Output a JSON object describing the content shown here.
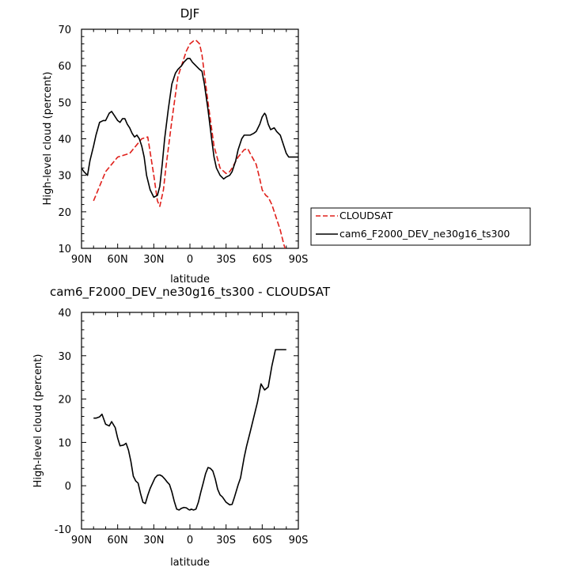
{
  "chart_data": [
    {
      "type": "line",
      "title": "DJF",
      "xlabel": "latitude",
      "ylabel": "High-level cloud (percent)",
      "xlim": [
        90,
        -90
      ],
      "ylim": [
        10,
        70
      ],
      "x_major_ticks": [
        90,
        60,
        30,
        0,
        -30,
        -60,
        -90
      ],
      "x_tick_labels": [
        "90N",
        "60N",
        "30N",
        "0",
        "30S",
        "60S",
        "90S"
      ],
      "y_major_ticks": [
        10,
        20,
        30,
        40,
        50,
        60,
        70
      ],
      "y_tick_labels": [
        "10",
        "20",
        "30",
        "40",
        "50",
        "60",
        "70"
      ],
      "legend_position": "right",
      "series": [
        {
          "name": "CLOUDSAT",
          "color": "#e0201b",
          "dash": "dashed",
          "x": [
            80,
            75,
            70,
            65,
            60,
            55,
            50,
            45,
            40,
            35,
            30,
            27,
            25,
            22,
            20,
            15,
            10,
            5,
            3,
            0,
            -3,
            -5,
            -8,
            -10,
            -15,
            -20,
            -25,
            -30,
            -33,
            -35,
            -40,
            -45,
            -48,
            -50,
            -55,
            -58,
            -60,
            -63,
            -65,
            -68,
            -70,
            -75,
            -78,
            -80
          ],
          "y": [
            23,
            27,
            31,
            33,
            35,
            35.5,
            36,
            38,
            40,
            40.5,
            30,
            23,
            21.5,
            26,
            32,
            45,
            57,
            62,
            64,
            66,
            66.8,
            67,
            66,
            63,
            50,
            38,
            32,
            30.5,
            31,
            32,
            35,
            37,
            37.3,
            36,
            33,
            29,
            26,
            24.5,
            24,
            22,
            20,
            15,
            11,
            9
          ]
        },
        {
          "name": "cam6_F2000_DEV_ne30g16_ts300",
          "color": "#000000",
          "dash": "solid",
          "x": [
            90,
            88,
            85,
            83,
            80,
            78,
            75,
            72,
            70,
            67,
            65,
            63,
            60,
            58,
            56,
            54,
            52,
            50,
            48,
            46,
            44,
            42,
            40,
            38,
            36,
            33,
            30,
            27,
            25,
            23,
            21,
            18,
            15,
            12,
            10,
            7,
            5,
            2,
            0,
            -2,
            -5,
            -8,
            -10,
            -12,
            -15,
            -18,
            -20,
            -22,
            -25,
            -28,
            -30,
            -33,
            -35,
            -38,
            -40,
            -43,
            -45,
            -48,
            -50,
            -53,
            -55,
            -58,
            -60,
            -62,
            -63,
            -65,
            -67,
            -70,
            -72,
            -75,
            -78,
            -80,
            -82,
            -85,
            -88,
            -90
          ],
          "y": [
            32,
            31,
            30,
            34,
            38,
            41,
            44.5,
            45,
            45,
            47,
            47.5,
            46.5,
            45,
            44.5,
            45.5,
            45.5,
            44,
            43,
            41.5,
            40.5,
            41,
            40,
            38,
            35,
            30,
            26,
            24,
            24.5,
            27,
            33,
            40,
            48,
            55,
            58,
            59,
            60,
            61,
            62,
            62,
            61,
            60,
            59,
            58.5,
            55,
            48,
            40,
            35,
            32,
            30,
            29,
            29.5,
            30,
            31,
            34,
            37,
            40,
            41,
            41,
            41,
            41.5,
            42,
            44,
            46,
            47,
            46.5,
            44,
            42.5,
            43,
            42,
            41,
            38,
            36,
            35,
            35,
            35,
            35
          ]
        }
      ]
    },
    {
      "type": "line",
      "title": "cam6_F2000_DEV_ne30g16_ts300 - CLOUDSAT",
      "xlabel": "latitude",
      "ylabel": "High-level cloud (percent)",
      "xlim": [
        90,
        -90
      ],
      "ylim": [
        -10,
        40
      ],
      "x_major_ticks": [
        90,
        60,
        30,
        0,
        -30,
        -60,
        -90
      ],
      "x_tick_labels": [
        "90N",
        "60N",
        "30N",
        "0",
        "30S",
        "60S",
        "90S"
      ],
      "y_major_ticks": [
        -10,
        0,
        10,
        20,
        30,
        40
      ],
      "y_tick_labels": [
        "-10",
        "0",
        "10",
        "20",
        "30",
        "40"
      ],
      "series": [
        {
          "name": "",
          "color": "#000000",
          "dash": "solid",
          "x": [
            80,
            78,
            75,
            73,
            70,
            67,
            65,
            62,
            60,
            58,
            55,
            53,
            51,
            49,
            47,
            45,
            43,
            41,
            39,
            37,
            35,
            33,
            31,
            29,
            27,
            25,
            23,
            21,
            19,
            17,
            15,
            13,
            11,
            9,
            7,
            5,
            3,
            1,
            0,
            -1,
            -3,
            -5,
            -7,
            -9,
            -11,
            -13,
            -15,
            -17,
            -19,
            -21,
            -23,
            -25,
            -27,
            -30,
            -33,
            -35,
            -37,
            -40,
            -42,
            -45,
            -47,
            -50,
            -53,
            -56,
            -59,
            -62,
            -65,
            -68,
            -71,
            -74,
            -77,
            -80
          ],
          "y": [
            15.6,
            15.6,
            15.9,
            16.5,
            14.2,
            13.8,
            14.8,
            13.4,
            11,
            9.2,
            9.4,
            9.8,
            8.2,
            5.6,
            2.2,
            1.1,
            0.6,
            -1.8,
            -3.8,
            -4.1,
            -2.2,
            -0.6,
            0.6,
            1.8,
            2.4,
            2.5,
            2.2,
            1.6,
            0.9,
            0.3,
            -1.4,
            -3.6,
            -5.4,
            -5.6,
            -5.2,
            -5.0,
            -5.1,
            -5.5,
            -5.6,
            -5.4,
            -5.6,
            -5.4,
            -3.8,
            -1.5,
            0.6,
            2.8,
            4.2,
            4.0,
            3.4,
            1.6,
            -0.8,
            -2.1,
            -2.6,
            -3.8,
            -4.4,
            -4.3,
            -2.6,
            0.2,
            1.8,
            6.5,
            9.1,
            12.4,
            15.8,
            19.2,
            23.5,
            22.1,
            22.8,
            27.6,
            31.4,
            31.4,
            31.4,
            31.4
          ]
        }
      ]
    }
  ]
}
